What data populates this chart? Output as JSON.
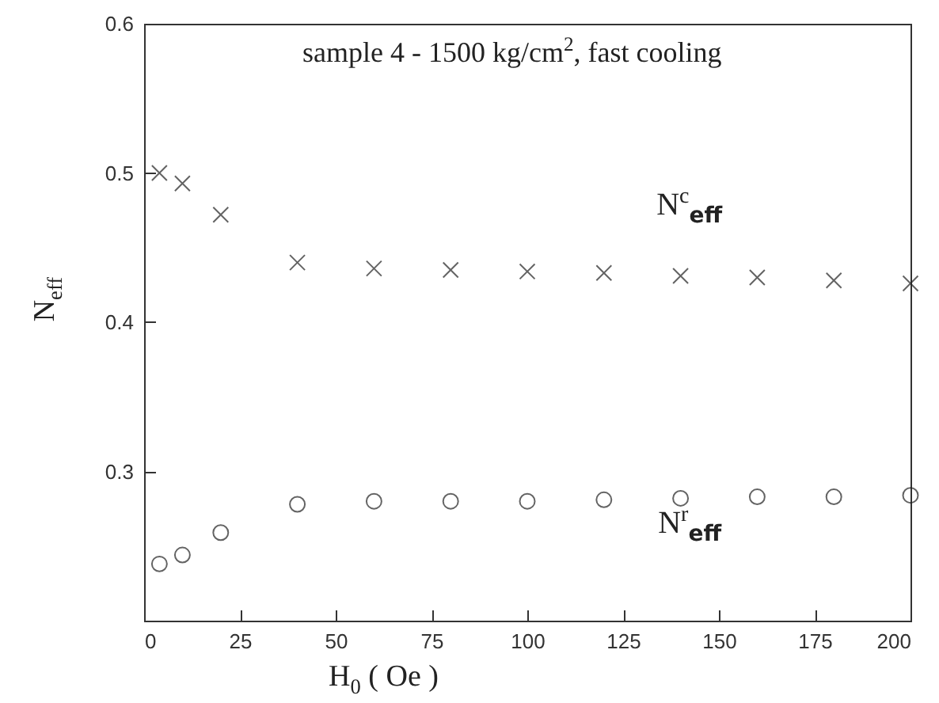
{
  "chart_data": {
    "type": "scatter",
    "xlabel": "H$_{0}$ ( Oe )",
    "ylabel": "N$_{eff}$",
    "annotations": [
      "sample  4 - 1500 kg/cm$^{2}$, fast  cooling"
    ],
    "xlim": [
      0,
      200
    ],
    "xticks": [
      0,
      25,
      50,
      75,
      100,
      125,
      150,
      175,
      200
    ],
    "ylim": [
      0.2,
      0.6
    ],
    "yticks": [
      0.3,
      0.4,
      0.5,
      0.6
    ],
    "grid": false,
    "legend": false,
    "series": [
      {
        "name": "N$^{c}$$_{eff}$",
        "color": "#222222",
        "marker": "cross",
        "x": [
          4,
          10,
          20,
          40,
          60,
          80,
          100,
          120,
          140,
          160,
          180,
          200
        ],
        "values": [
          0.5,
          0.493,
          0.472,
          0.44,
          0.436,
          0.435,
          0.434,
          0.433,
          0.431,
          0.43,
          0.428,
          0.426
        ]
      },
      {
        "name": "N$^{r}$$_{eff}$",
        "color": "#222222",
        "marker": "circle",
        "x": [
          4,
          10,
          20,
          40,
          60,
          80,
          100,
          120,
          140,
          160,
          180,
          200
        ],
        "values": [
          0.238,
          0.244,
          0.259,
          0.278,
          0.28,
          0.28,
          0.28,
          0.281,
          0.282,
          0.283,
          0.283,
          0.284
        ]
      }
    ]
  }
}
